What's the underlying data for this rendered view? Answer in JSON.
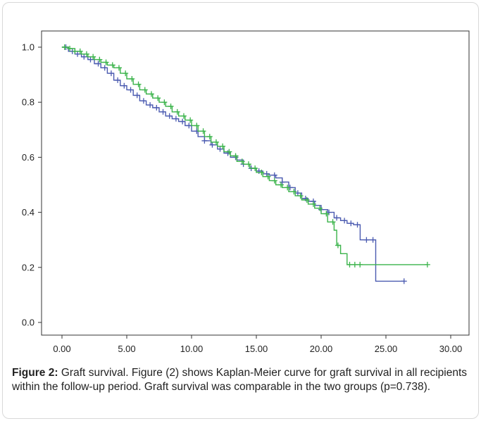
{
  "chart_data": {
    "type": "line",
    "title": "",
    "xlabel": "",
    "ylabel": "",
    "xlim": [
      0,
      30
    ],
    "ylim": [
      0,
      1.0
    ],
    "x_ticks": [
      "0.00",
      "5.00",
      "10.00",
      "15.00",
      "20.00",
      "25.00",
      "30.00"
    ],
    "y_ticks": [
      "0.0",
      "0.2",
      "0.4",
      "0.6",
      "0.8",
      "1.0"
    ],
    "grid": false,
    "legend": "none",
    "series": [
      {
        "color": "#4a5ab0",
        "points": [
          [
            0,
            1.0
          ],
          [
            0.5,
            0.985
          ],
          [
            1,
            0.975
          ],
          [
            1.5,
            0.965
          ],
          [
            2,
            0.955
          ],
          [
            2.5,
            0.94
          ],
          [
            3,
            0.925
          ],
          [
            3.5,
            0.905
          ],
          [
            4,
            0.88
          ],
          [
            4.5,
            0.86
          ],
          [
            5,
            0.845
          ],
          [
            5.5,
            0.825
          ],
          [
            6,
            0.805
          ],
          [
            6.5,
            0.79
          ],
          [
            7,
            0.78
          ],
          [
            7.5,
            0.765
          ],
          [
            8,
            0.75
          ],
          [
            8.5,
            0.74
          ],
          [
            9,
            0.73
          ],
          [
            9.5,
            0.715
          ],
          [
            10,
            0.695
          ],
          [
            10.5,
            0.675
          ],
          [
            11,
            0.66
          ],
          [
            11.5,
            0.645
          ],
          [
            12,
            0.63
          ],
          [
            12.5,
            0.615
          ],
          [
            13,
            0.6
          ],
          [
            13.5,
            0.59
          ],
          [
            14,
            0.575
          ],
          [
            14.5,
            0.56
          ],
          [
            15,
            0.55
          ],
          [
            15.5,
            0.54
          ],
          [
            16,
            0.535
          ],
          [
            16.5,
            0.525
          ],
          [
            17,
            0.51
          ],
          [
            17.5,
            0.49
          ],
          [
            18,
            0.47
          ],
          [
            18.5,
            0.45
          ],
          [
            19,
            0.44
          ],
          [
            19.5,
            0.425
          ],
          [
            20,
            0.41
          ],
          [
            20.5,
            0.4
          ],
          [
            21,
            0.38
          ],
          [
            21.5,
            0.37
          ],
          [
            22,
            0.36
          ],
          [
            22.5,
            0.355
          ],
          [
            23,
            0.355
          ],
          [
            23.01,
            0.3
          ],
          [
            24.2,
            0.3
          ],
          [
            24.21,
            0.15
          ],
          [
            26.4,
            0.15
          ]
        ],
        "censor_x": [
          0.3,
          0.8,
          1.2,
          1.7,
          2.2,
          2.8,
          3.3,
          3.8,
          4.3,
          4.8,
          5.3,
          5.8,
          6.3,
          6.8,
          7.3,
          7.8,
          8.3,
          8.8,
          9.3,
          9.8,
          10.4,
          11.0,
          11.6,
          12.2,
          12.8,
          13.4,
          14.0,
          14.6,
          15.2,
          15.8,
          16.4,
          17.0,
          17.6,
          18.2,
          18.8,
          19.4,
          20.0,
          20.6,
          21.2,
          21.8,
          22.3,
          22.8,
          23.5,
          24.0,
          26.4
        ]
      },
      {
        "color": "#3ab34a",
        "points": [
          [
            0,
            1.0
          ],
          [
            0.5,
            0.995
          ],
          [
            1,
            0.985
          ],
          [
            1.5,
            0.975
          ],
          [
            2,
            0.965
          ],
          [
            2.5,
            0.955
          ],
          [
            3,
            0.945
          ],
          [
            3.5,
            0.935
          ],
          [
            4,
            0.925
          ],
          [
            4.5,
            0.905
          ],
          [
            5,
            0.885
          ],
          [
            5.5,
            0.865
          ],
          [
            6,
            0.845
          ],
          [
            6.5,
            0.83
          ],
          [
            7,
            0.815
          ],
          [
            7.5,
            0.8
          ],
          [
            8,
            0.785
          ],
          [
            8.5,
            0.765
          ],
          [
            9,
            0.75
          ],
          [
            9.5,
            0.735
          ],
          [
            10,
            0.715
          ],
          [
            10.5,
            0.695
          ],
          [
            11,
            0.675
          ],
          [
            11.5,
            0.655
          ],
          [
            12,
            0.64
          ],
          [
            12.5,
            0.62
          ],
          [
            13,
            0.605
          ],
          [
            13.5,
            0.585
          ],
          [
            14,
            0.575
          ],
          [
            14.5,
            0.56
          ],
          [
            15,
            0.545
          ],
          [
            15.5,
            0.53
          ],
          [
            16,
            0.515
          ],
          [
            16.5,
            0.5
          ],
          [
            17,
            0.49
          ],
          [
            17.5,
            0.475
          ],
          [
            18,
            0.46
          ],
          [
            18.5,
            0.445
          ],
          [
            19,
            0.43
          ],
          [
            19.5,
            0.415
          ],
          [
            20,
            0.395
          ],
          [
            20.5,
            0.365
          ],
          [
            21,
            0.335
          ],
          [
            21.2,
            0.28
          ],
          [
            21.5,
            0.25
          ],
          [
            22,
            0.21
          ],
          [
            22.5,
            0.21
          ],
          [
            24.2,
            0.21
          ],
          [
            28.2,
            0.21
          ]
        ],
        "censor_x": [
          0.2,
          0.6,
          1.0,
          1.4,
          1.9,
          2.4,
          2.9,
          3.4,
          3.9,
          4.4,
          4.9,
          5.4,
          5.9,
          6.4,
          6.9,
          7.4,
          7.9,
          8.4,
          8.9,
          9.4,
          9.9,
          10.4,
          10.9,
          11.4,
          11.9,
          12.4,
          12.9,
          13.4,
          13.9,
          14.4,
          14.9,
          15.4,
          15.9,
          16.4,
          16.9,
          17.4,
          17.9,
          18.4,
          18.9,
          19.4,
          19.9,
          20.4,
          20.9,
          21.3,
          22.2,
          22.6,
          23.0,
          28.2
        ]
      }
    ]
  },
  "caption": {
    "label": "Figure 2:",
    "text": " Graft survival. Figure (2) shows Kaplan-Meier curve for graft survival in all recipients within the follow-up period. Graft survival was comparable in the two groups (p=0.738)."
  }
}
